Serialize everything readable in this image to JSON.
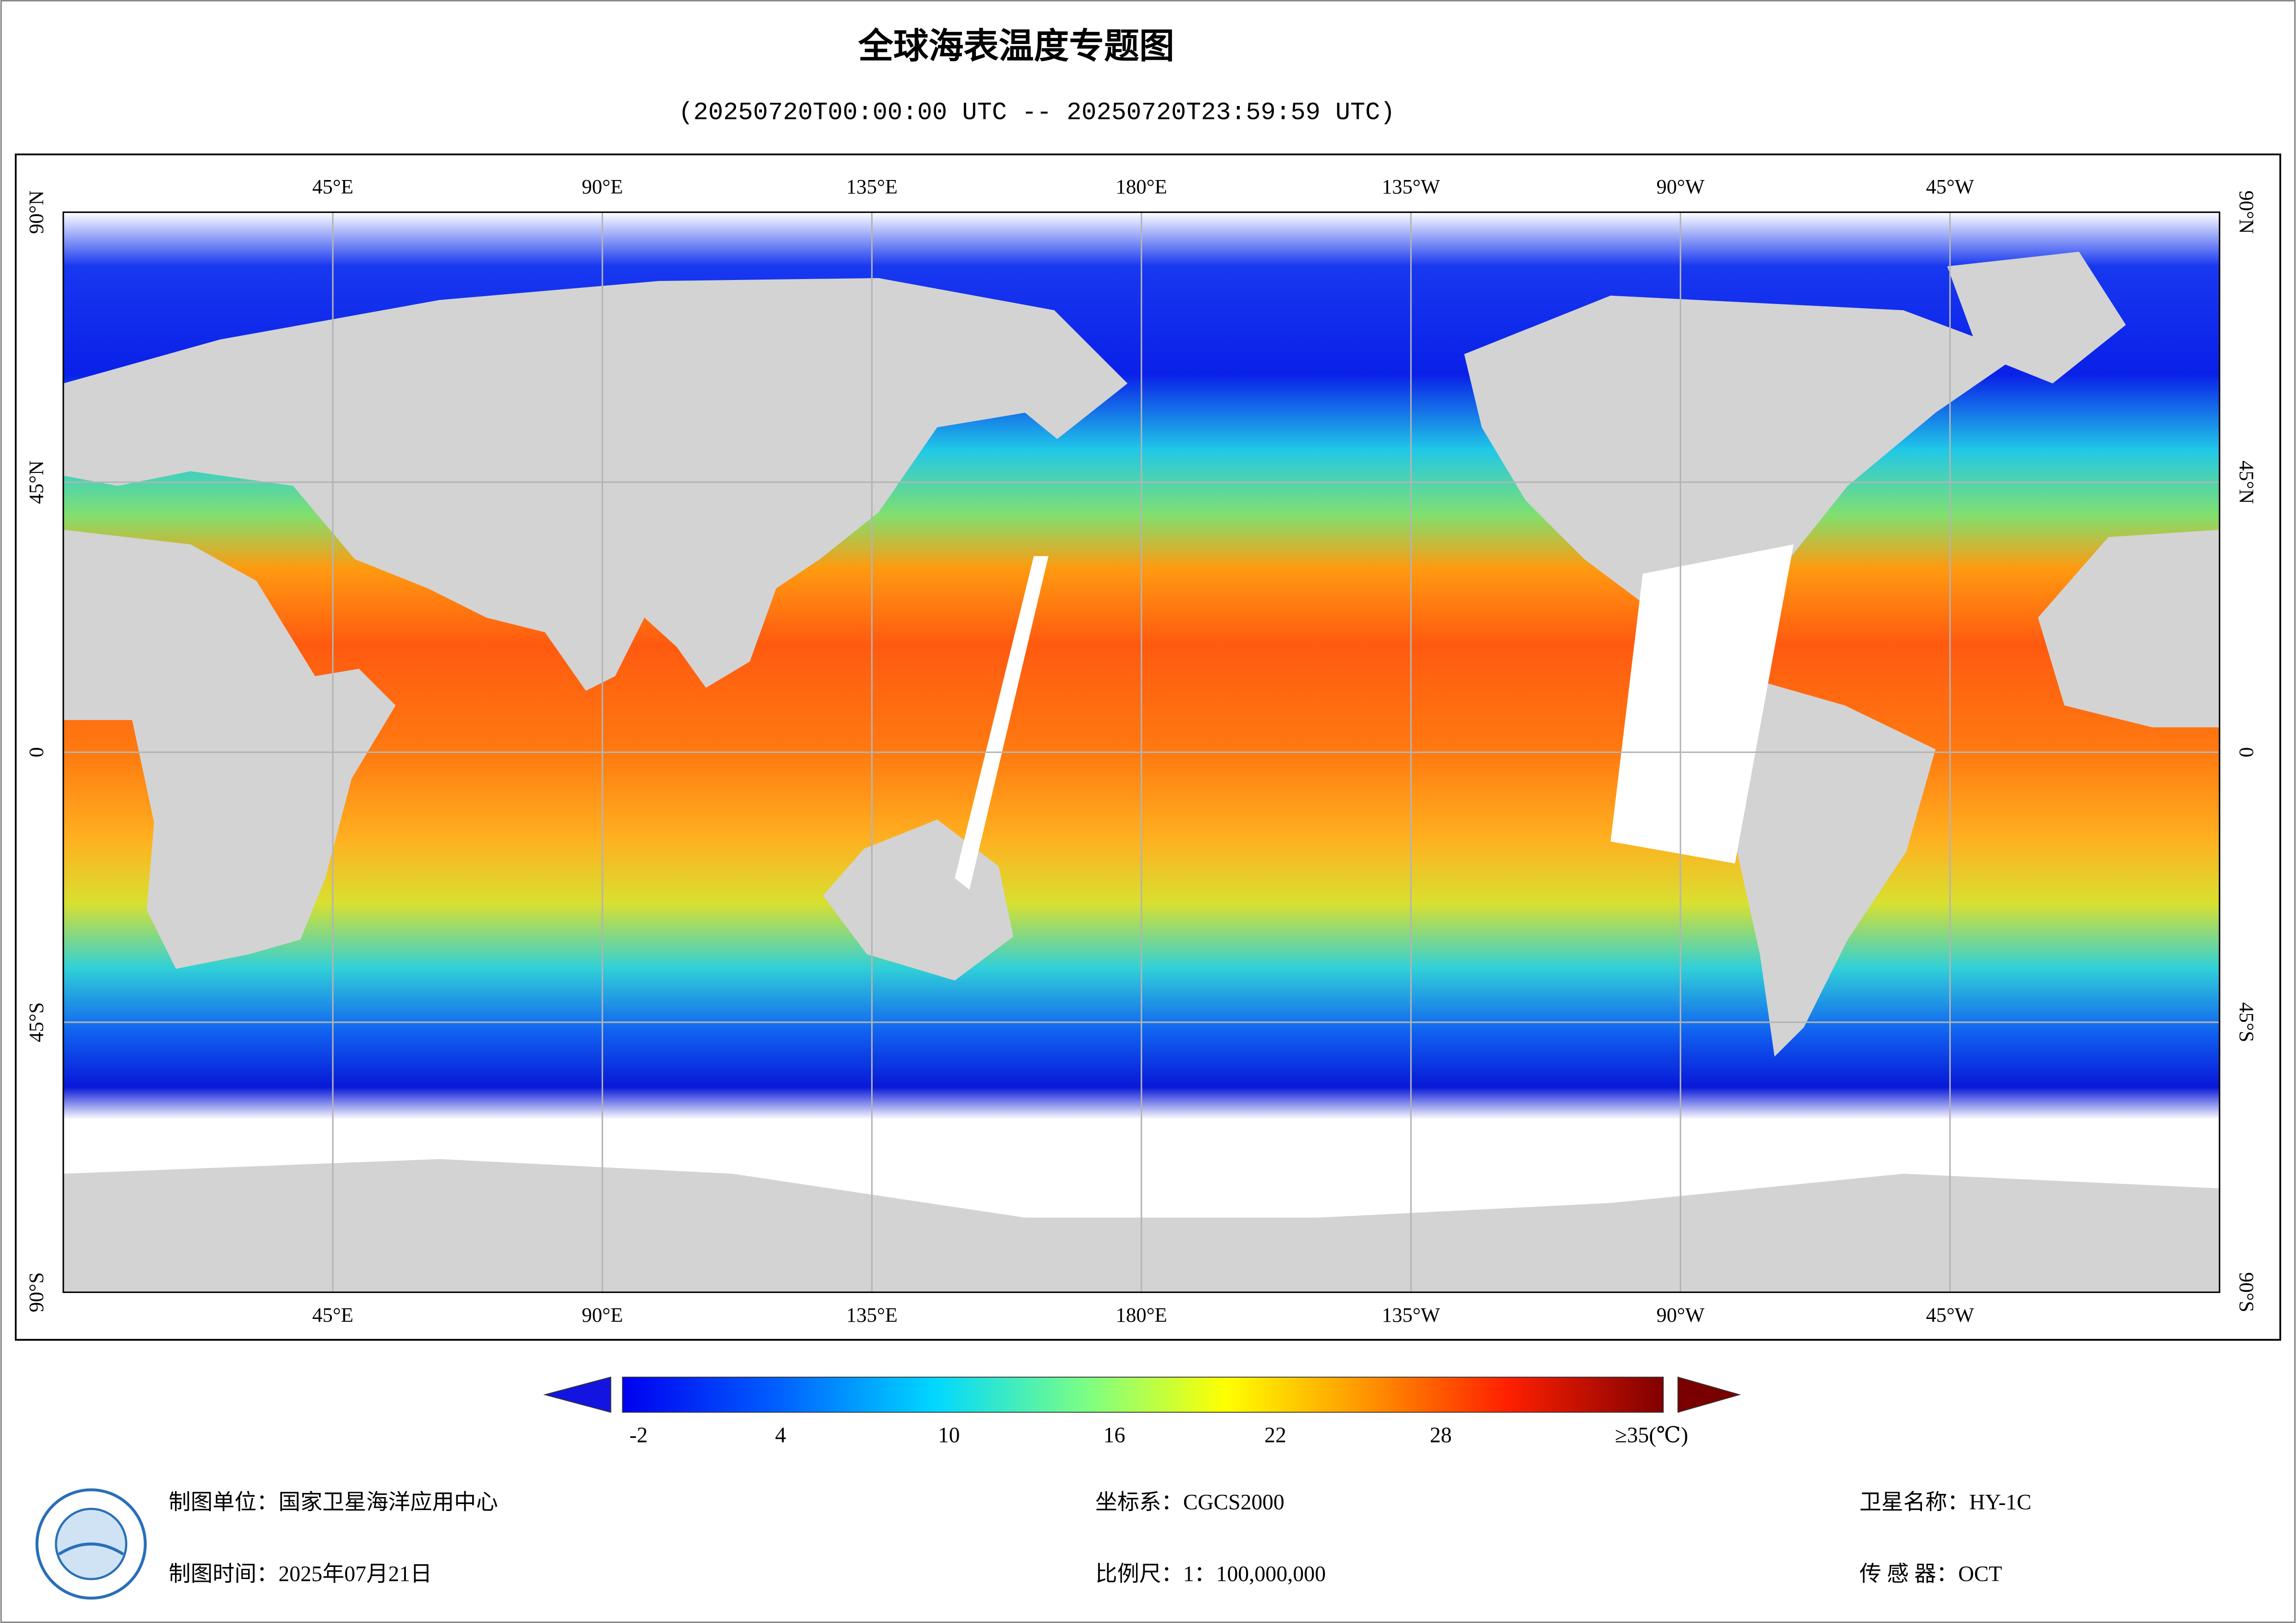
{
  "map": {
    "title": "全球海表温度专题图",
    "subtitle": "(20250720T00:00:00 UTC -- 20250720T23:59:59 UTC)",
    "lon_labels": [
      "45°E",
      "90°E",
      "135°E",
      "180°E",
      "135°W",
      "90°W",
      "45°W"
    ],
    "lat_labels": [
      "90°N",
      "45°N",
      "0",
      "45°S",
      "90°S"
    ],
    "colorbar_labels": [
      "-2",
      "4",
      "10",
      "16",
      "22",
      "28",
      "≥35(℃)"
    ]
  },
  "footer": {
    "unit": "制图单位：国家卫星海洋应用中心",
    "time": "制图时间：2025年07月21日",
    "crs": "坐标系：CGCS2000",
    "scale": "比例尺：1：100,000,000",
    "satellite": "卫星名称：HY-1C",
    "sensor": "传 感 器：OCT"
  }
}
